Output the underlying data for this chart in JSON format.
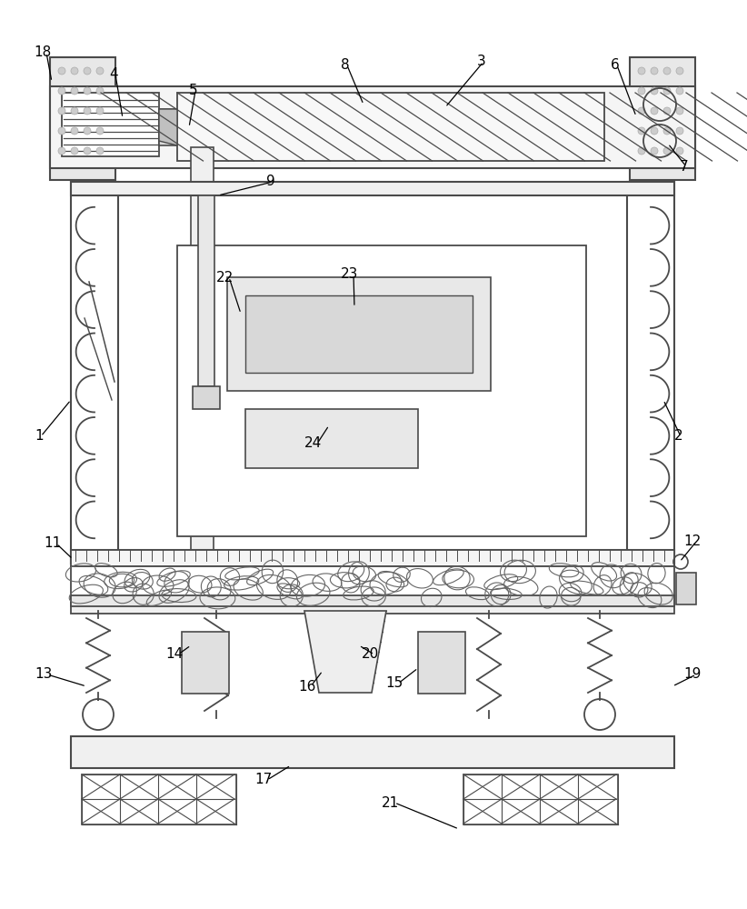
{
  "bg": "#ffffff",
  "lc": "#4a4a4a",
  "gray_light": "#f0f0f0",
  "gray_med": "#e0e0e0",
  "gray_dark": "#c8c8c8",
  "figsize": [
    8.22,
    10.0
  ],
  "dpi": 100
}
